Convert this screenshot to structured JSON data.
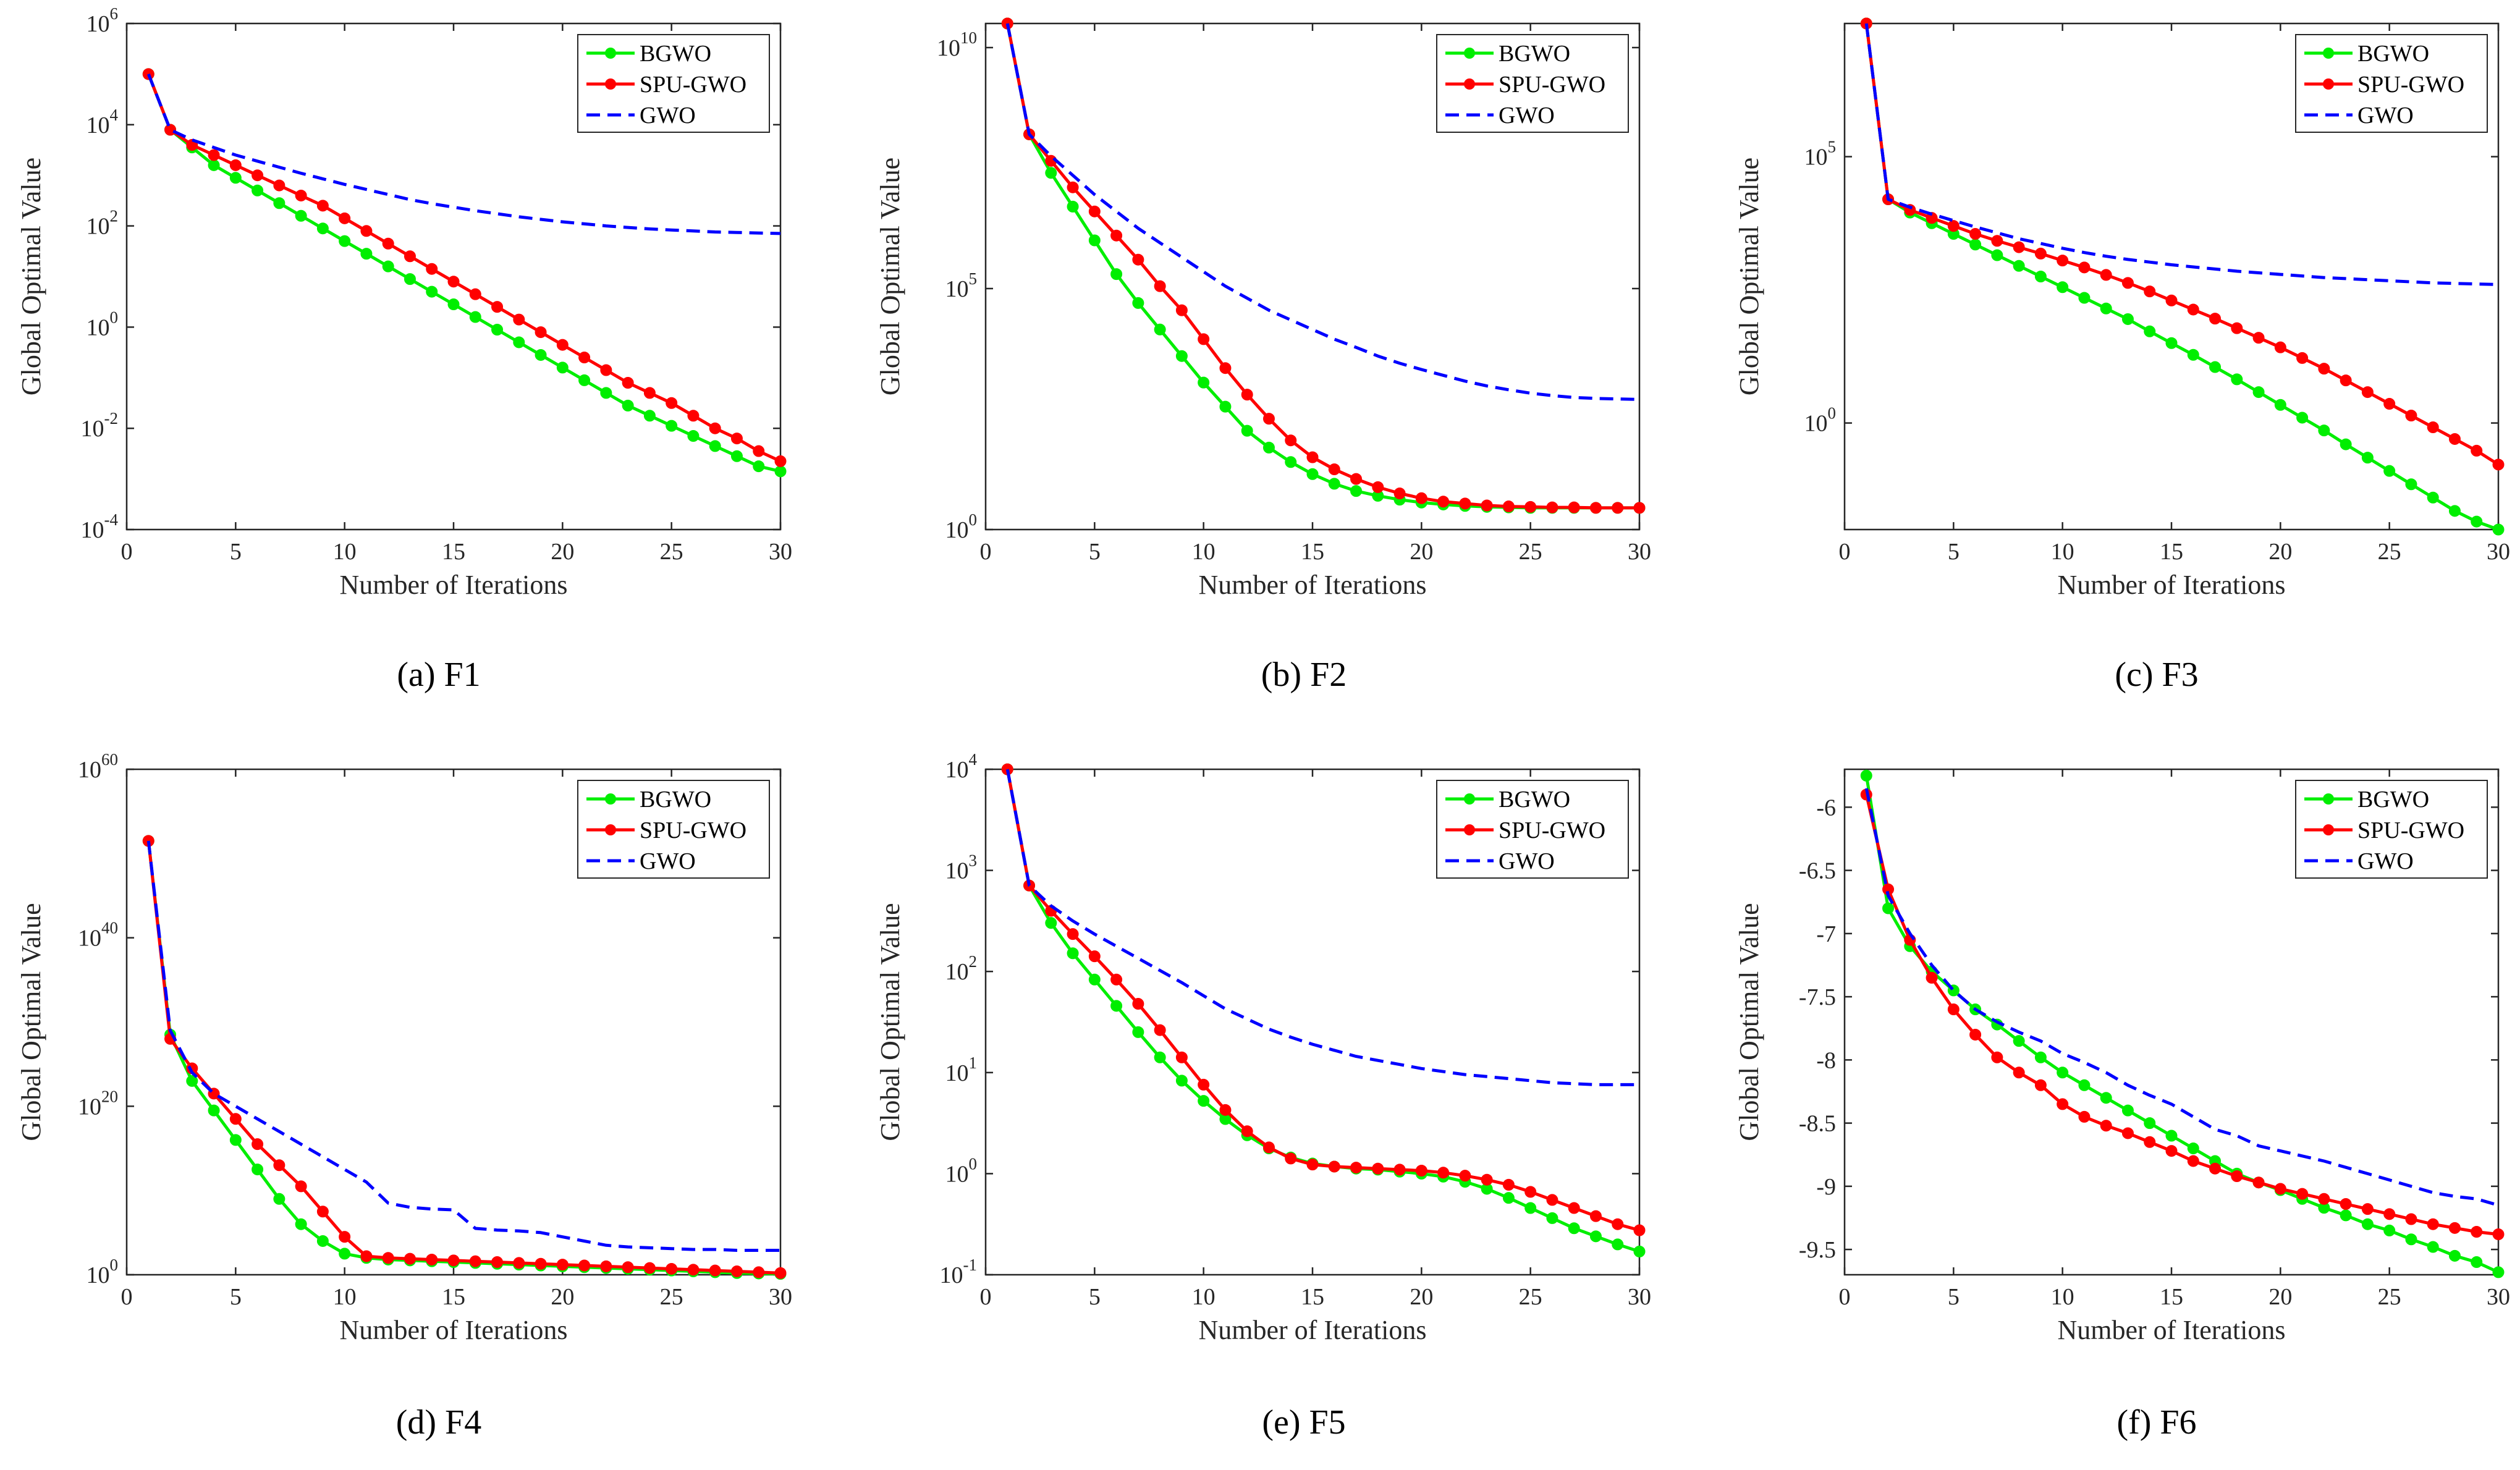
{
  "colors": {
    "BGWO": "#00ee00",
    "SPU-GWO": "#ff0000",
    "GWO": "#0000ff"
  },
  "chart_data": [
    {
      "id": "a",
      "caption": "(a) F1",
      "type": "line",
      "yscale": "log",
      "title": "",
      "xlabel": "Number of Iterations",
      "ylabel": "Global Optimal Value",
      "xlim": [
        0,
        30
      ],
      "ylim": [
        -4,
        6
      ],
      "xticks": [
        0,
        5,
        10,
        15,
        20,
        25,
        30
      ],
      "yticks": [
        {
          "v": -4,
          "base": "10",
          "exp": "-4"
        },
        {
          "v": -2,
          "base": "10",
          "exp": "-2"
        },
        {
          "v": 0,
          "base": "10",
          "exp": "0"
        },
        {
          "v": 2,
          "base": "10",
          "exp": "2"
        },
        {
          "v": 4,
          "base": "10",
          "exp": "4"
        },
        {
          "v": 6,
          "base": "10",
          "exp": "6"
        }
      ],
      "x": [
        1,
        2,
        3,
        4,
        5,
        6,
        7,
        8,
        9,
        10,
        11,
        12,
        13,
        14,
        15,
        16,
        17,
        18,
        19,
        20,
        21,
        22,
        23,
        24,
        25,
        26,
        27,
        28,
        29,
        30
      ],
      "series": [
        {
          "name": "BGWO",
          "markers": true,
          "values": [
            5.0,
            3.9,
            3.55,
            3.2,
            2.95,
            2.7,
            2.45,
            2.2,
            1.95,
            1.7,
            1.45,
            1.2,
            0.95,
            0.7,
            0.45,
            0.2,
            -0.05,
            -0.3,
            -0.55,
            -0.8,
            -1.05,
            -1.3,
            -1.55,
            -1.75,
            -1.95,
            -2.15,
            -2.35,
            -2.55,
            -2.75,
            -2.85
          ]
        },
        {
          "name": "SPU-GWO",
          "markers": true,
          "values": [
            5.0,
            3.9,
            3.6,
            3.4,
            3.2,
            3.0,
            2.8,
            2.6,
            2.4,
            2.15,
            1.9,
            1.65,
            1.4,
            1.15,
            0.9,
            0.65,
            0.4,
            0.15,
            -0.1,
            -0.35,
            -0.6,
            -0.85,
            -1.1,
            -1.3,
            -1.5,
            -1.75,
            -2.0,
            -2.2,
            -2.45,
            -2.65
          ]
        },
        {
          "name": "GWO",
          "markers": false,
          "values": [
            5.0,
            3.9,
            3.7,
            3.55,
            3.4,
            3.28,
            3.16,
            3.04,
            2.93,
            2.82,
            2.72,
            2.62,
            2.52,
            2.44,
            2.37,
            2.3,
            2.24,
            2.18,
            2.13,
            2.08,
            2.04,
            2.0,
            1.97,
            1.94,
            1.92,
            1.9,
            1.88,
            1.87,
            1.86,
            1.85
          ]
        }
      ],
      "legend": "top-right"
    },
    {
      "id": "b",
      "caption": "(b) F2",
      "type": "line",
      "yscale": "log",
      "title": "",
      "xlabel": "Number of Iterations",
      "ylabel": "Global Optimal Value",
      "xlim": [
        0,
        30
      ],
      "ylim": [
        0,
        10.5
      ],
      "xticks": [
        0,
        5,
        10,
        15,
        20,
        25,
        30
      ],
      "yticks": [
        {
          "v": 0,
          "base": "10",
          "exp": "0"
        },
        {
          "v": 5,
          "base": "10",
          "exp": "5"
        },
        {
          "v": 10,
          "base": "10",
          "exp": "10"
        }
      ],
      "x": [
        1,
        2,
        3,
        4,
        5,
        6,
        7,
        8,
        9,
        10,
        11,
        12,
        13,
        14,
        15,
        16,
        17,
        18,
        19,
        20,
        21,
        22,
        23,
        24,
        25,
        26,
        27,
        28,
        29,
        30
      ],
      "series": [
        {
          "name": "BGWO",
          "markers": true,
          "values": [
            10.5,
            8.2,
            7.4,
            6.7,
            6.0,
            5.3,
            4.7,
            4.15,
            3.6,
            3.05,
            2.55,
            2.05,
            1.7,
            1.4,
            1.15,
            0.95,
            0.8,
            0.7,
            0.62,
            0.56,
            0.52,
            0.49,
            0.47,
            0.46,
            0.45,
            0.45,
            0.45,
            0.45,
            0.45,
            0.45
          ]
        },
        {
          "name": "SPU-GWO",
          "markers": true,
          "values": [
            10.5,
            8.2,
            7.65,
            7.1,
            6.6,
            6.1,
            5.6,
            5.05,
            4.55,
            3.95,
            3.35,
            2.8,
            2.3,
            1.85,
            1.5,
            1.25,
            1.05,
            0.88,
            0.75,
            0.65,
            0.58,
            0.54,
            0.5,
            0.48,
            0.47,
            0.46,
            0.46,
            0.45,
            0.45,
            0.45
          ]
        },
        {
          "name": "GWO",
          "markers": false,
          "values": [
            10.5,
            8.2,
            7.75,
            7.35,
            6.95,
            6.6,
            6.25,
            5.95,
            5.65,
            5.35,
            5.05,
            4.8,
            4.55,
            4.35,
            4.15,
            3.95,
            3.78,
            3.6,
            3.45,
            3.32,
            3.2,
            3.08,
            2.98,
            2.9,
            2.83,
            2.78,
            2.74,
            2.72,
            2.71,
            2.7
          ]
        }
      ],
      "legend": "top-right"
    },
    {
      "id": "c",
      "caption": "(c) F3",
      "type": "line",
      "yscale": "log",
      "title": "",
      "xlabel": "Number of Iterations",
      "ylabel": "Global Optimal Value",
      "xlim": [
        0,
        30
      ],
      "ylim": [
        -2,
        7.5
      ],
      "xticks": [
        0,
        5,
        10,
        15,
        20,
        25,
        30
      ],
      "yticks": [
        {
          "v": 0,
          "base": "10",
          "exp": "0"
        },
        {
          "v": 5,
          "base": "10",
          "exp": "5"
        }
      ],
      "x": [
        1,
        2,
        3,
        4,
        5,
        6,
        7,
        8,
        9,
        10,
        11,
        12,
        13,
        14,
        15,
        16,
        17,
        18,
        19,
        20,
        21,
        22,
        23,
        24,
        25,
        26,
        27,
        28,
        29,
        30
      ],
      "series": [
        {
          "name": "BGWO",
          "markers": true,
          "values": [
            7.5,
            4.2,
            3.95,
            3.75,
            3.55,
            3.35,
            3.15,
            2.95,
            2.75,
            2.55,
            2.35,
            2.15,
            1.95,
            1.72,
            1.5,
            1.28,
            1.05,
            0.82,
            0.58,
            0.34,
            0.1,
            -0.14,
            -0.4,
            -0.65,
            -0.9,
            -1.15,
            -1.4,
            -1.65,
            -1.85,
            -2.0
          ]
        },
        {
          "name": "SPU-GWO",
          "markers": true,
          "values": [
            7.5,
            4.2,
            4.0,
            3.85,
            3.7,
            3.55,
            3.42,
            3.3,
            3.18,
            3.05,
            2.92,
            2.78,
            2.63,
            2.47,
            2.3,
            2.13,
            1.96,
            1.78,
            1.6,
            1.42,
            1.22,
            1.02,
            0.8,
            0.58,
            0.36,
            0.14,
            -0.08,
            -0.3,
            -0.52,
            -0.78
          ]
        },
        {
          "name": "GWO",
          "markers": false,
          "values": [
            7.5,
            4.2,
            4.05,
            3.92,
            3.8,
            3.68,
            3.57,
            3.46,
            3.37,
            3.28,
            3.2,
            3.13,
            3.07,
            3.02,
            2.97,
            2.93,
            2.89,
            2.85,
            2.82,
            2.79,
            2.76,
            2.73,
            2.71,
            2.69,
            2.67,
            2.65,
            2.63,
            2.62,
            2.61,
            2.6
          ]
        }
      ],
      "legend": "top-right"
    },
    {
      "id": "d",
      "caption": "(d) F4",
      "type": "line",
      "yscale": "log",
      "title": "",
      "xlabel": "Number of Iterations",
      "ylabel": "Global Optimal Value",
      "xlim": [
        0,
        30
      ],
      "ylim": [
        0,
        60
      ],
      "xticks": [
        0,
        5,
        10,
        15,
        20,
        25,
        30
      ],
      "yticks": [
        {
          "v": 0,
          "base": "10",
          "exp": "0"
        },
        {
          "v": 20,
          "base": "10",
          "exp": "20"
        },
        {
          "v": 40,
          "base": "10",
          "exp": "40"
        },
        {
          "v": 60,
          "base": "10",
          "exp": "60"
        }
      ],
      "x": [
        1,
        2,
        3,
        4,
        5,
        6,
        7,
        8,
        9,
        10,
        11,
        12,
        13,
        14,
        15,
        16,
        17,
        18,
        19,
        20,
        21,
        22,
        23,
        24,
        25,
        26,
        27,
        28,
        29,
        30
      ],
      "series": [
        {
          "name": "BGWO",
          "markers": true,
          "values": [
            51.5,
            28.5,
            23.0,
            19.5,
            16.0,
            12.5,
            9.0,
            6.0,
            4.0,
            2.5,
            2.0,
            1.8,
            1.7,
            1.6,
            1.5,
            1.4,
            1.3,
            1.2,
            1.1,
            1.0,
            0.9,
            0.8,
            0.7,
            0.6,
            0.5,
            0.4,
            0.3,
            0.2,
            0.15,
            0.1
          ]
        },
        {
          "name": "SPU-GWO",
          "markers": true,
          "values": [
            51.5,
            28.0,
            24.5,
            21.5,
            18.5,
            15.5,
            13.0,
            10.5,
            7.5,
            4.5,
            2.2,
            2.0,
            1.9,
            1.8,
            1.7,
            1.6,
            1.5,
            1.4,
            1.3,
            1.2,
            1.1,
            1.0,
            0.9,
            0.8,
            0.7,
            0.6,
            0.5,
            0.4,
            0.3,
            0.2
          ]
        },
        {
          "name": "GWO",
          "markers": false,
          "values": [
            51.5,
            29.0,
            24.0,
            21.5,
            20.0,
            18.5,
            17.0,
            15.5,
            14.0,
            12.5,
            11.0,
            8.5,
            8.0,
            7.8,
            7.7,
            5.5,
            5.3,
            5.2,
            5.0,
            4.5,
            4.0,
            3.5,
            3.3,
            3.2,
            3.1,
            3.0,
            3.0,
            2.9,
            2.9,
            2.9
          ]
        }
      ],
      "legend": "top-right"
    },
    {
      "id": "e",
      "caption": "(e) F5",
      "type": "line",
      "yscale": "log",
      "title": "",
      "xlabel": "Number of Iterations",
      "ylabel": "Global Optimal Value",
      "xlim": [
        0,
        30
      ],
      "ylim": [
        -1,
        4
      ],
      "xticks": [
        0,
        5,
        10,
        15,
        20,
        25,
        30
      ],
      "yticks": [
        {
          "v": -1,
          "base": "10",
          "exp": "-1"
        },
        {
          "v": 0,
          "base": "10",
          "exp": "0"
        },
        {
          "v": 1,
          "base": "10",
          "exp": "1"
        },
        {
          "v": 2,
          "base": "10",
          "exp": "2"
        },
        {
          "v": 3,
          "base": "10",
          "exp": "3"
        },
        {
          "v": 4,
          "base": "10",
          "exp": "4"
        }
      ],
      "x": [
        1,
        2,
        3,
        4,
        5,
        6,
        7,
        8,
        9,
        10,
        11,
        12,
        13,
        14,
        15,
        16,
        17,
        18,
        19,
        20,
        21,
        22,
        23,
        24,
        25,
        26,
        27,
        28,
        29,
        30
      ],
      "series": [
        {
          "name": "BGWO",
          "markers": true,
          "values": [
            4.0,
            2.85,
            2.48,
            2.18,
            1.92,
            1.66,
            1.4,
            1.15,
            0.92,
            0.72,
            0.54,
            0.38,
            0.25,
            0.16,
            0.1,
            0.07,
            0.05,
            0.04,
            0.02,
            0.0,
            -0.03,
            -0.08,
            -0.15,
            -0.24,
            -0.34,
            -0.44,
            -0.54,
            -0.62,
            -0.7,
            -0.77
          ]
        },
        {
          "name": "SPU-GWO",
          "markers": true,
          "values": [
            4.0,
            2.85,
            2.6,
            2.37,
            2.15,
            1.92,
            1.68,
            1.42,
            1.15,
            0.88,
            0.63,
            0.42,
            0.26,
            0.15,
            0.09,
            0.07,
            0.06,
            0.05,
            0.04,
            0.03,
            0.01,
            -0.02,
            -0.06,
            -0.11,
            -0.18,
            -0.26,
            -0.34,
            -0.42,
            -0.5,
            -0.56
          ]
        },
        {
          "name": "GWO",
          "markers": false,
          "values": [
            4.0,
            2.85,
            2.65,
            2.5,
            2.37,
            2.25,
            2.13,
            2.01,
            1.89,
            1.76,
            1.63,
            1.53,
            1.43,
            1.35,
            1.28,
            1.22,
            1.16,
            1.12,
            1.08,
            1.04,
            1.01,
            0.98,
            0.96,
            0.94,
            0.92,
            0.9,
            0.89,
            0.88,
            0.88,
            0.88
          ]
        }
      ],
      "legend": "top-right"
    },
    {
      "id": "f",
      "caption": "(f) F6",
      "type": "line",
      "yscale": "linear",
      "title": "",
      "xlabel": "Number of Iterations",
      "ylabel": "Global Optimal Value",
      "xlim": [
        0,
        30
      ],
      "ylim": [
        -9.7,
        -5.7
      ],
      "xticks": [
        0,
        5,
        10,
        15,
        20,
        25,
        30
      ],
      "yticks": [
        {
          "v": -6,
          "label": "-6"
        },
        {
          "v": -6.5,
          "label": "-6.5"
        },
        {
          "v": -7,
          "label": "-7"
        },
        {
          "v": -7.5,
          "label": "-7.5"
        },
        {
          "v": -8,
          "label": "-8"
        },
        {
          "v": -8.5,
          "label": "-8.5"
        },
        {
          "v": -9,
          "label": "-9"
        },
        {
          "v": -9.5,
          "label": "-9.5"
        }
      ],
      "x": [
        1,
        2,
        3,
        4,
        5,
        6,
        7,
        8,
        9,
        10,
        11,
        12,
        13,
        14,
        15,
        16,
        17,
        18,
        19,
        20,
        21,
        22,
        23,
        24,
        25,
        26,
        27,
        28,
        29,
        30
      ],
      "series": [
        {
          "name": "BGWO",
          "markers": true,
          "values": [
            -5.75,
            -6.8,
            -7.1,
            -7.3,
            -7.45,
            -7.6,
            -7.72,
            -7.85,
            -7.98,
            -8.1,
            -8.2,
            -8.3,
            -8.4,
            -8.5,
            -8.6,
            -8.7,
            -8.8,
            -8.9,
            -8.97,
            -9.03,
            -9.1,
            -9.17,
            -9.23,
            -9.3,
            -9.35,
            -9.42,
            -9.48,
            -9.55,
            -9.6,
            -9.68
          ]
        },
        {
          "name": "SPU-GWO",
          "markers": true,
          "values": [
            -5.9,
            -6.65,
            -7.05,
            -7.35,
            -7.6,
            -7.8,
            -7.98,
            -8.1,
            -8.2,
            -8.35,
            -8.45,
            -8.52,
            -8.58,
            -8.65,
            -8.72,
            -8.8,
            -8.86,
            -8.92,
            -8.97,
            -9.02,
            -9.06,
            -9.1,
            -9.14,
            -9.18,
            -9.22,
            -9.26,
            -9.3,
            -9.33,
            -9.36,
            -9.38
          ]
        },
        {
          "name": "GWO",
          "markers": false,
          "values": [
            -5.85,
            -6.7,
            -7.0,
            -7.25,
            -7.45,
            -7.6,
            -7.7,
            -7.78,
            -7.85,
            -7.95,
            -8.02,
            -8.1,
            -8.2,
            -8.28,
            -8.35,
            -8.45,
            -8.55,
            -8.6,
            -8.68,
            -8.72,
            -8.76,
            -8.8,
            -8.85,
            -8.9,
            -8.95,
            -9.0,
            -9.05,
            -9.08,
            -9.1,
            -9.15
          ]
        }
      ],
      "legend": "top-right"
    }
  ]
}
